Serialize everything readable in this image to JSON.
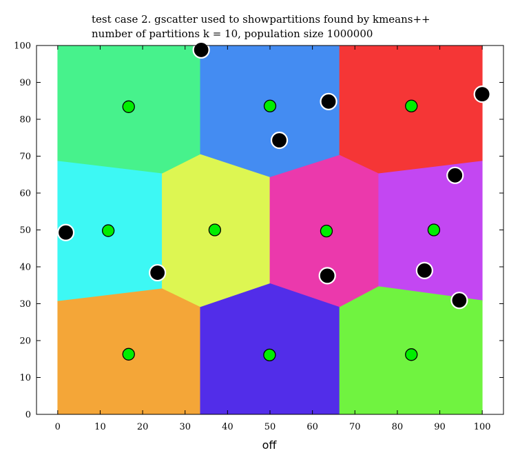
{
  "chart_data": {
    "type": "scatter",
    "title_lines": [
      "test case 2. gscatter used to showpartitions found by kmeans++",
      "number of partitions k = 10, population size 1000000"
    ],
    "xlabel": "off",
    "ylabel": "",
    "xlim": [
      -5,
      105
    ],
    "ylim": [
      0,
      100
    ],
    "x_ticks": [
      0,
      10,
      20,
      30,
      40,
      50,
      60,
      70,
      80,
      90,
      100
    ],
    "y_ticks": [
      0,
      10,
      20,
      30,
      40,
      50,
      60,
      70,
      80,
      90,
      100
    ],
    "grid": false,
    "legend": "none",
    "partitions": [
      {
        "color": "#f39a1c",
        "polygon": [
          [
            0,
            0
          ],
          [
            33.6,
            0
          ],
          [
            33.6,
            29.2
          ],
          [
            24.6,
            34.2
          ],
          [
            0,
            30.8
          ]
        ]
      },
      {
        "color": "#3a10e6",
        "polygon": [
          [
            33.6,
            0
          ],
          [
            66.4,
            0
          ],
          [
            66.4,
            29.2
          ],
          [
            50,
            35.6
          ],
          [
            33.6,
            29.2
          ]
        ]
      },
      {
        "color": "#5cf126",
        "polygon": [
          [
            66.4,
            0
          ],
          [
            100,
            0
          ],
          [
            100,
            31
          ],
          [
            75.6,
            34.8
          ],
          [
            66.4,
            29.2
          ]
        ]
      },
      {
        "color": "#22f7f2",
        "polygon": [
          [
            0,
            30.8
          ],
          [
            24.6,
            34.2
          ],
          [
            24.6,
            65.4
          ],
          [
            0,
            68.8
          ]
        ]
      },
      {
        "color": "#d8f53a",
        "polygon": [
          [
            24.6,
            34.2
          ],
          [
            33.6,
            29.2
          ],
          [
            50,
            35.6
          ],
          [
            50,
            64.4
          ],
          [
            33.6,
            70.6
          ],
          [
            24.6,
            65.4
          ]
        ]
      },
      {
        "color": "#e81ea0",
        "polygon": [
          [
            50,
            35.6
          ],
          [
            66.4,
            29.2
          ],
          [
            75.6,
            34.8
          ],
          [
            75.6,
            65.4
          ],
          [
            66.4,
            70.4
          ],
          [
            50,
            64.4
          ]
        ]
      },
      {
        "color": "#bb2ef0",
        "polygon": [
          [
            75.6,
            34.8
          ],
          [
            100,
            31
          ],
          [
            100,
            68.8
          ],
          [
            75.6,
            65.4
          ]
        ]
      },
      {
        "color": "#2ef07c",
        "polygon": [
          [
            0,
            68.8
          ],
          [
            24.6,
            65.4
          ],
          [
            33.6,
            70.6
          ],
          [
            33.6,
            100
          ],
          [
            0,
            100
          ]
        ]
      },
      {
        "color": "#2a7cf0",
        "polygon": [
          [
            33.6,
            70.6
          ],
          [
            50,
            64.4
          ],
          [
            66.4,
            70.4
          ],
          [
            66.4,
            100
          ],
          [
            33.6,
            100
          ]
        ]
      },
      {
        "color": "#f41a1a",
        "polygon": [
          [
            66.4,
            70.4
          ],
          [
            75.6,
            65.4
          ],
          [
            100,
            68.8
          ],
          [
            100,
            100
          ],
          [
            66.4,
            100
          ]
        ]
      }
    ],
    "centroids": {
      "color": "#00ee00",
      "points": [
        [
          16.7,
          16.3
        ],
        [
          49.9,
          16.1
        ],
        [
          83.3,
          16.2
        ],
        [
          11.9,
          49.8
        ],
        [
          37,
          50
        ],
        [
          63.3,
          49.7
        ],
        [
          88.6,
          50
        ],
        [
          16.7,
          83.4
        ],
        [
          50,
          83.6
        ],
        [
          83.3,
          83.6
        ]
      ]
    },
    "initial_points": {
      "color": "#000000",
      "points": [
        [
          33.8,
          98.8
        ],
        [
          63.8,
          84.8
        ],
        [
          52.2,
          74.3
        ],
        [
          100,
          86.8
        ],
        [
          93.6,
          64.8
        ],
        [
          1.9,
          49.3
        ],
        [
          23.5,
          38.4
        ],
        [
          63.5,
          37.6
        ],
        [
          86.4,
          39
        ],
        [
          94.6,
          30.9
        ]
      ]
    }
  }
}
